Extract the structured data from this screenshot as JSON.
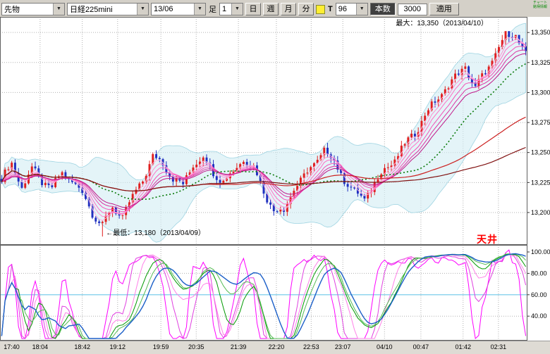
{
  "toolbar": {
    "instrument_type": "先物",
    "instrument": "日経225mini",
    "contract_month": "13/06",
    "ashi_label": "足",
    "interval_value": "1",
    "period_buttons": [
      "日",
      "週",
      "月",
      "分"
    ],
    "tick_label": "T",
    "tick_count": "96",
    "honsu_label": "本数",
    "bar_count": "3000",
    "apply_label": "適用",
    "corner_text": "チャート銘柄情報"
  },
  "chart": {
    "ceiling_label": "天井"
  },
  "colors": {
    "up": "#e01f1f",
    "down": "#2030c0",
    "ribbon": [
      "#ffaede",
      "#ff8fd2",
      "#ff70c6",
      "#f351b6",
      "#dd33a2",
      "#c01788"
    ],
    "ma_green": "#0a7a0a",
    "ma_red_fast": "#cc2222",
    "ma_red_slow": "#801010",
    "cloud": "#d2ecf4",
    "cloud_edge": "#9fd4e2",
    "osc": [
      "#ff00ff",
      "#e040e0",
      "#ff80e8",
      "#009900",
      "#55bb55",
      "#1b5fc8"
    ],
    "osc_mid_line": "#6cc7e8",
    "grid": "#b0b0b0",
    "border": "#606060",
    "ceiling": "#ff0000"
  },
  "chart_data": {
    "type": "candlestick",
    "symbol": "日経225mini 13/06",
    "candle_count": 157,
    "price_top": 13363,
    "price_bottom": 13173,
    "anchors": [
      [
        0,
        13228
      ],
      [
        3,
        13240
      ],
      [
        6,
        13222
      ],
      [
        9,
        13236
      ],
      [
        12,
        13226
      ],
      [
        15,
        13221
      ],
      [
        18,
        13232
      ],
      [
        21,
        13227
      ],
      [
        24,
        13216
      ],
      [
        27,
        13200
      ],
      [
        30,
        13189
      ],
      [
        33,
        13204
      ],
      [
        36,
        13197
      ],
      [
        39,
        13212
      ],
      [
        42,
        13228
      ],
      [
        45,
        13246
      ],
      [
        48,
        13241
      ],
      [
        51,
        13229
      ],
      [
        54,
        13222
      ],
      [
        57,
        13241
      ],
      [
        60,
        13246
      ],
      [
        63,
        13233
      ],
      [
        66,
        13227
      ],
      [
        69,
        13233
      ],
      [
        72,
        13246
      ],
      [
        75,
        13237
      ],
      [
        78,
        13218
      ],
      [
        81,
        13202
      ],
      [
        84,
        13201
      ],
      [
        87,
        13221
      ],
      [
        90,
        13229
      ],
      [
        93,
        13241
      ],
      [
        96,
        13252
      ],
      [
        99,
        13242
      ],
      [
        102,
        13228
      ],
      [
        105,
        13216
      ],
      [
        108,
        13212
      ],
      [
        111,
        13224
      ],
      [
        114,
        13236
      ],
      [
        117,
        13244
      ],
      [
        120,
        13256
      ],
      [
        123,
        13267
      ],
      [
        126,
        13281
      ],
      [
        129,
        13292
      ],
      [
        132,
        13303
      ],
      [
        135,
        13312
      ],
      [
        138,
        13322
      ],
      [
        141,
        13303
      ],
      [
        144,
        13317
      ],
      [
        147,
        13332
      ],
      [
        150,
        13347
      ],
      [
        153,
        13349
      ],
      [
        156,
        13331
      ]
    ],
    "min_point": {
      "index": 30,
      "price": 13180,
      "label": "←最低：13,180（2013/04/09）"
    },
    "max_point": {
      "index": 152,
      "price": 13350,
      "label": "最大：13,350（2013/04/10）"
    },
    "bollinger": {
      "period": 20,
      "mult": 2
    },
    "ribbon_periods": [
      3,
      5,
      7,
      10,
      13,
      16
    ],
    "ma_green_period": 26,
    "ma_red_periods": [
      60,
      120
    ],
    "oscillator": {
      "range": [
        0,
        100
      ],
      "lines": [
        {
          "period": 7,
          "smooth": 2
        },
        {
          "period": 12,
          "smooth": 3
        },
        {
          "period": 18,
          "smooth": 4
        },
        {
          "period": 26,
          "smooth": 5
        },
        {
          "period": 34,
          "smooth": 6
        },
        {
          "period": 48,
          "smooth": 8
        }
      ]
    },
    "y_ticks": [
      {
        "label": "13,350",
        "v": 13350
      },
      {
        "label": "13,325",
        "v": 13325
      },
      {
        "label": "13,300",
        "v": 13300
      },
      {
        "label": "13,275",
        "v": 13275
      },
      {
        "label": "13,250",
        "v": 13250
      },
      {
        "label": "13,225",
        "v": 13225
      },
      {
        "label": "13,200",
        "v": 13200
      }
    ],
    "osc_ticks": [
      {
        "label": "100.00",
        "v": 100
      },
      {
        "label": "80.00",
        "v": 80
      },
      {
        "label": "60.00",
        "v": 60
      },
      {
        "label": "40.00",
        "v": 40
      }
    ],
    "x_ticks": [
      {
        "label": "17:40",
        "f": 0.007
      },
      {
        "label": "18:04",
        "f": 0.076
      },
      {
        "label": "18:42",
        "f": 0.156
      },
      {
        "label": "19:12",
        "f": 0.223
      },
      {
        "label": "19:59",
        "f": 0.305
      },
      {
        "label": "20:35",
        "f": 0.372
      },
      {
        "label": "21:39",
        "f": 0.452
      },
      {
        "label": "22:20",
        "f": 0.524
      },
      {
        "label": "22:53",
        "f": 0.59
      },
      {
        "label": "23:07",
        "f": 0.65
      },
      {
        "label": "04/10",
        "f": 0.729
      },
      {
        "label": "00:47",
        "f": 0.798
      },
      {
        "label": "01:42",
        "f": 0.878
      },
      {
        "label": "02:31",
        "f": 0.945
      }
    ]
  }
}
